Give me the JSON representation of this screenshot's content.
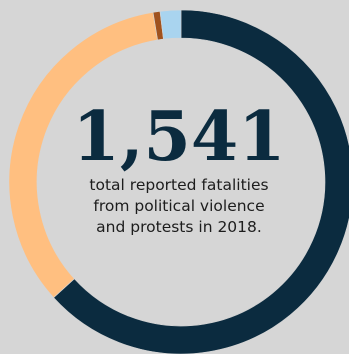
{
  "colors": {
    "background": "#d6d6d6",
    "dark": "#0b2b3f",
    "orange": "#ffbf80",
    "brown": "#a0521e",
    "light_blue": "#a9d4ef"
  },
  "center": {
    "headline": "1,541",
    "caption_lines": [
      "total reported fatalities",
      "from political violence",
      "and protests in 2018."
    ]
  },
  "chart_data": {
    "type": "pie",
    "donut": true,
    "total": 1541,
    "title": "",
    "slices": [
      {
        "value": 975,
        "color": "#0b2b3f"
      },
      {
        "value": 526,
        "color": "#ffbf80"
      },
      {
        "value": 10,
        "color": "#a0521e"
      },
      {
        "value": 30,
        "color": "#a9d4ef"
      }
    ]
  }
}
